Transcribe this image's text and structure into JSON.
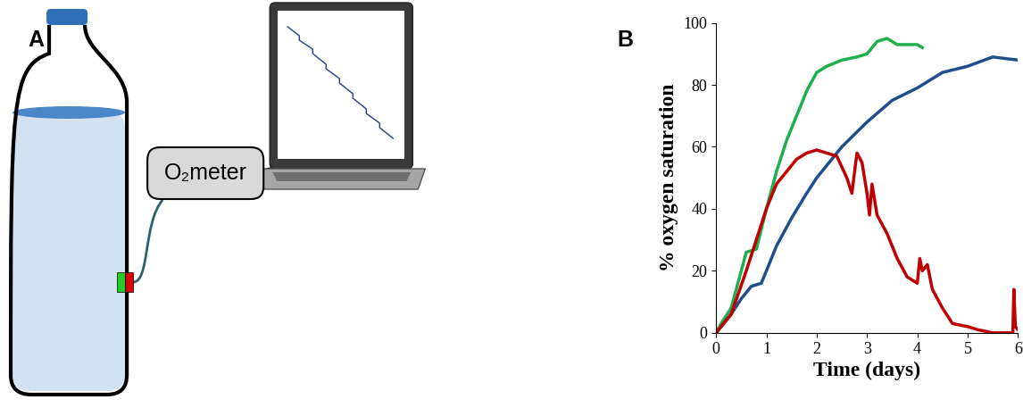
{
  "diagram": {
    "panel": "A",
    "meter": "O₂meter"
  },
  "chart_data": {
    "panel": "B",
    "type": "line",
    "x_label": "Time (days)",
    "y_label": "% oxygen saturation",
    "xlim": [
      0,
      6
    ],
    "ylim": [
      0,
      100
    ],
    "xticks": [
      0,
      1,
      2,
      3,
      4,
      5,
      6
    ],
    "yticks": [
      0,
      20,
      40,
      60,
      80,
      100
    ],
    "series": [
      {
        "color": "#1fae4c",
        "x": [
          0,
          0.1,
          0.3,
          0.5,
          0.6,
          0.8,
          1.0,
          1.2,
          1.4,
          1.6,
          1.8,
          2.0,
          2.2,
          2.5,
          2.8,
          3.0,
          3.2,
          3.4,
          3.6,
          3.8,
          4.0,
          4.1
        ],
        "values": [
          0,
          3,
          8,
          20,
          26,
          27,
          40,
          52,
          62,
          70,
          78,
          84,
          86,
          88,
          89,
          90,
          94,
          95,
          93,
          93,
          93,
          92
        ]
      },
      {
        "color": "#1f4e8c",
        "x": [
          0,
          0.3,
          0.5,
          0.7,
          0.9,
          1.0,
          1.2,
          1.5,
          1.8,
          2.0,
          2.5,
          3.0,
          3.5,
          4.0,
          4.5,
          5.0,
          5.5,
          6.0
        ],
        "values": [
          0,
          6,
          11,
          15,
          16,
          20,
          28,
          37,
          45,
          50,
          60,
          68,
          75,
          79,
          84,
          86,
          89,
          88
        ]
      },
      {
        "color": "#c00000",
        "x": [
          0,
          0.3,
          0.6,
          0.8,
          1.0,
          1.2,
          1.4,
          1.6,
          1.8,
          2.0,
          2.2,
          2.4,
          2.6,
          2.7,
          2.8,
          2.9,
          3.0,
          3.05,
          3.1,
          3.2,
          3.4,
          3.6,
          3.8,
          4.0,
          4.05,
          4.1,
          4.2,
          4.3,
          4.5,
          4.7,
          5.0,
          5.2,
          5.5,
          5.9,
          5.92,
          5.95,
          6.0
        ],
        "values": [
          0,
          6,
          20,
          30,
          40,
          48,
          52,
          56,
          58,
          59,
          58,
          57,
          50,
          45,
          58,
          55,
          45,
          38,
          48,
          38,
          32,
          24,
          18,
          16,
          24,
          20,
          22,
          14,
          8,
          3,
          2,
          1,
          0,
          0,
          14,
          2,
          1
        ]
      }
    ]
  }
}
